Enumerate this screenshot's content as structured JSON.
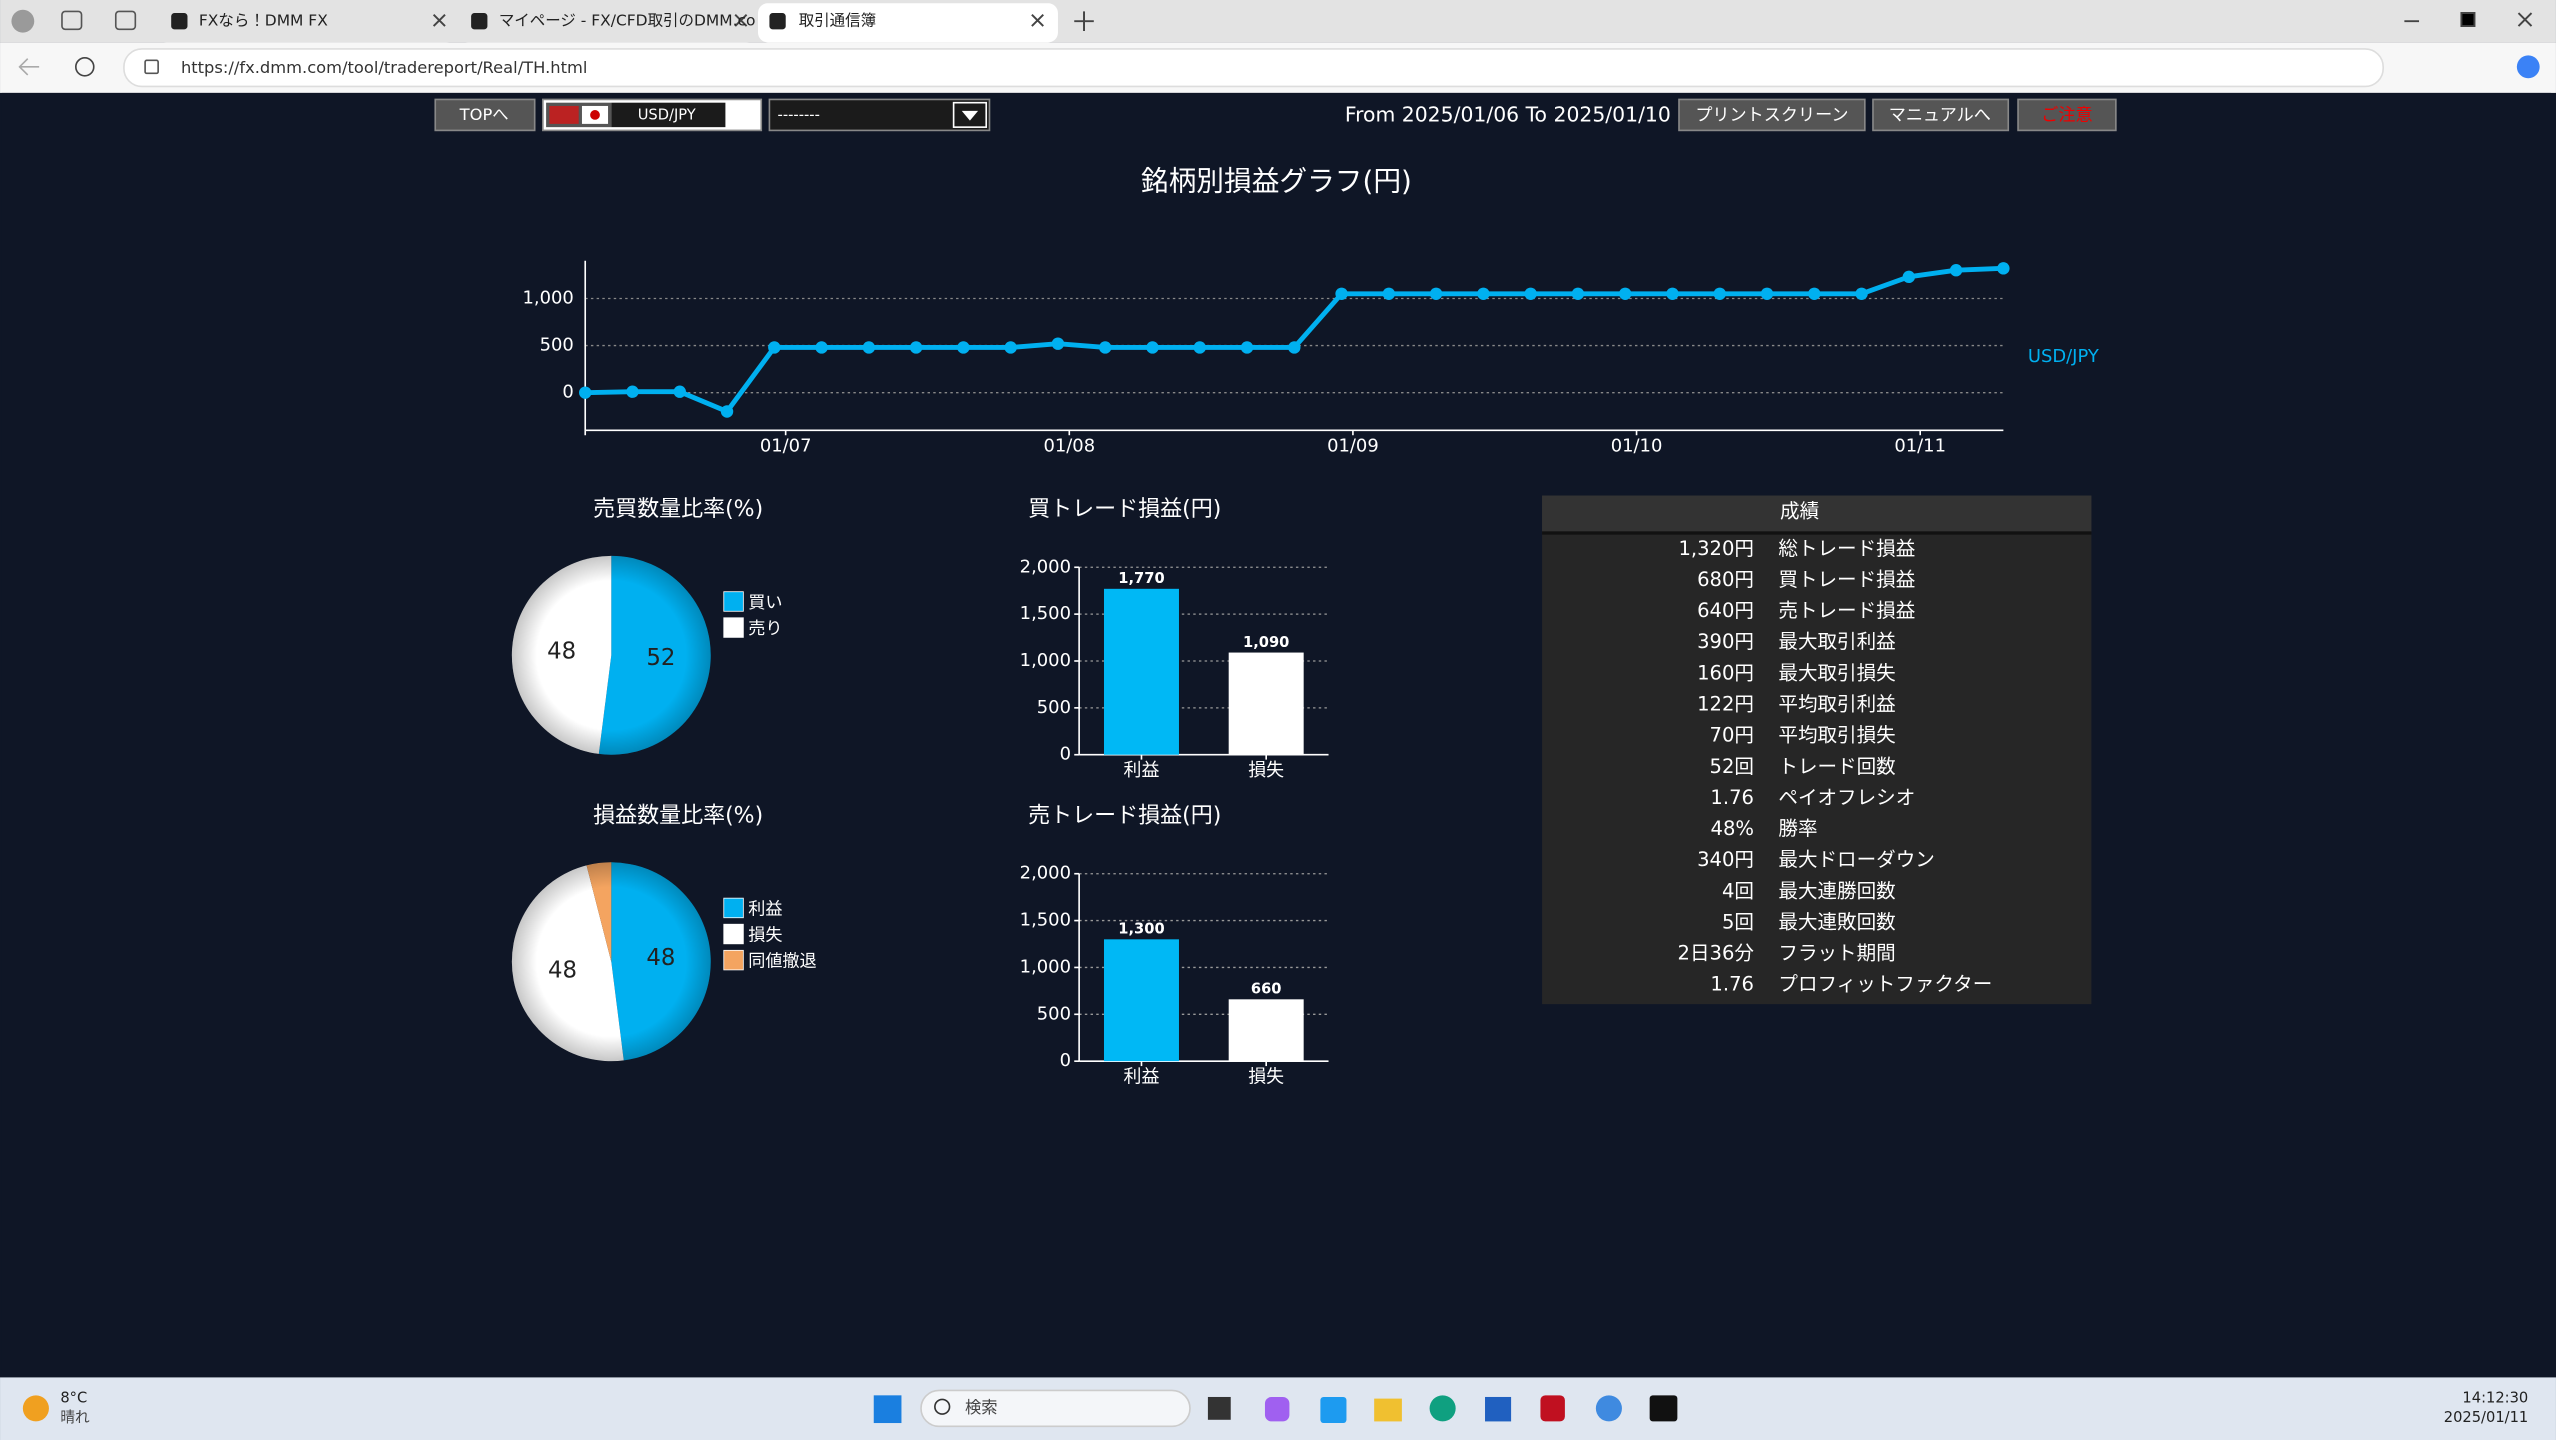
{
  "browser": {
    "tabs": [
      "FXなら！DMM FX",
      "マイページ - FX/CFD取引のDMM.co",
      "取引通信簿"
    ],
    "url": "https://fx.dmm.com/tool/tradereport/Real/TH.html"
  },
  "toolbar": {
    "top_button": "TOPへ",
    "symbol": "USD/JPY",
    "filter": "--------",
    "period": "From 2025/01/06 To 2025/01/10",
    "print_button": "プリントスクリーン",
    "manual_button": "マニュアルへ",
    "caution_button": "ご注意"
  },
  "line_chart": {
    "type": "line",
    "title": "銘柄別損益グラフ(円)",
    "x": [
      0,
      1,
      2,
      3,
      4,
      5,
      6,
      7,
      8,
      9,
      10,
      11,
      12,
      13,
      14,
      15,
      16,
      17,
      18,
      19,
      20,
      21,
      22,
      23,
      24,
      25,
      26,
      27,
      28,
      29,
      30
    ],
    "xlim": [
      0,
      30
    ],
    "xticks": [
      {
        "value": 4.24,
        "label": "01/07"
      },
      {
        "value": 10.24,
        "label": "01/08"
      },
      {
        "value": 16.24,
        "label": "01/09"
      },
      {
        "value": 22.24,
        "label": "01/10"
      },
      {
        "value": 28.24,
        "label": "01/11"
      }
    ],
    "ylim": [
      -400,
      1400
    ],
    "yticks": [
      0,
      500,
      {
        "value": 1000,
        "label": "1,000"
      }
    ],
    "grid": true,
    "series": [
      {
        "name": "USD/JPY",
        "color": "#00b0f0",
        "values": [
          0,
          10,
          10,
          -200,
          480,
          480,
          480,
          480,
          480,
          480,
          520,
          480,
          480,
          480,
          480,
          480,
          1050,
          1050,
          1050,
          1050,
          1050,
          1050,
          1050,
          1050,
          1050,
          1050,
          1050,
          1050,
          1230,
          1300,
          1320
        ]
      }
    ]
  },
  "pie_charts": [
    {
      "type": "pie",
      "title": "売買数量比率(%)",
      "categories": [
        "買い",
        "売り"
      ],
      "values": [
        52,
        48
      ],
      "colors": [
        "#00b0f0",
        "#ffffff"
      ]
    },
    {
      "type": "pie",
      "title": "損益数量比率(%)",
      "categories": [
        "利益",
        "損失",
        "同値撤退"
      ],
      "values": [
        48,
        48,
        4
      ],
      "colors": [
        "#00b0f0",
        "#ffffff",
        "#f4a460"
      ]
    }
  ],
  "bar_charts": [
    {
      "type": "bar",
      "title": "買トレード損益(円)",
      "categories": [
        "利益",
        "損失"
      ],
      "values": [
        1770,
        1090
      ],
      "value_labels": [
        "1,770",
        "1,090"
      ],
      "colors": [
        "#00b8f5",
        "#ffffff"
      ],
      "ylim": [
        0,
        2000
      ],
      "yticks": [
        0,
        500,
        {
          "value": 1000,
          "label": "1,000"
        },
        {
          "value": 1500,
          "label": "1,500"
        },
        {
          "value": 2000,
          "label": "2,000"
        }
      ],
      "grid": true
    },
    {
      "type": "bar",
      "title": "売トレード損益(円)",
      "categories": [
        "利益",
        "損失"
      ],
      "values": [
        1300,
        660
      ],
      "value_labels": [
        "1,300",
        "660"
      ],
      "colors": [
        "#00b8f5",
        "#ffffff"
      ],
      "ylim": [
        0,
        2000
      ],
      "yticks": [
        0,
        500,
        {
          "value": 1000,
          "label": "1,000"
        },
        {
          "value": 1500,
          "label": "1,500"
        },
        {
          "value": 2000,
          "label": "2,000"
        }
      ],
      "grid": true
    }
  ],
  "results_table": {
    "title": "成績",
    "rows": [
      [
        "1,320円",
        "総トレード損益"
      ],
      [
        "680円",
        "買トレード損益"
      ],
      [
        "640円",
        "売トレード損益"
      ],
      [
        "390円",
        "最大取引利益"
      ],
      [
        "160円",
        "最大取引損失"
      ],
      [
        "122円",
        "平均取引利益"
      ],
      [
        "70円",
        "平均取引損失"
      ],
      [
        "52回",
        "トレード回数"
      ],
      [
        "1.76",
        "ペイオフレシオ"
      ],
      [
        "48%",
        "勝率"
      ],
      [
        "340円",
        "最大ドローダウン"
      ],
      [
        "4回",
        "最大連勝回数"
      ],
      [
        "5回",
        "最大連敗回数"
      ],
      [
        "2日36分",
        "フラット期間"
      ],
      [
        "1.76",
        "プロフィットファクター"
      ]
    ]
  },
  "taskbar": {
    "temperature": "8°C",
    "weather": "晴れ",
    "search": "検索",
    "time": "14:12:30",
    "date": "2025/01/11"
  }
}
